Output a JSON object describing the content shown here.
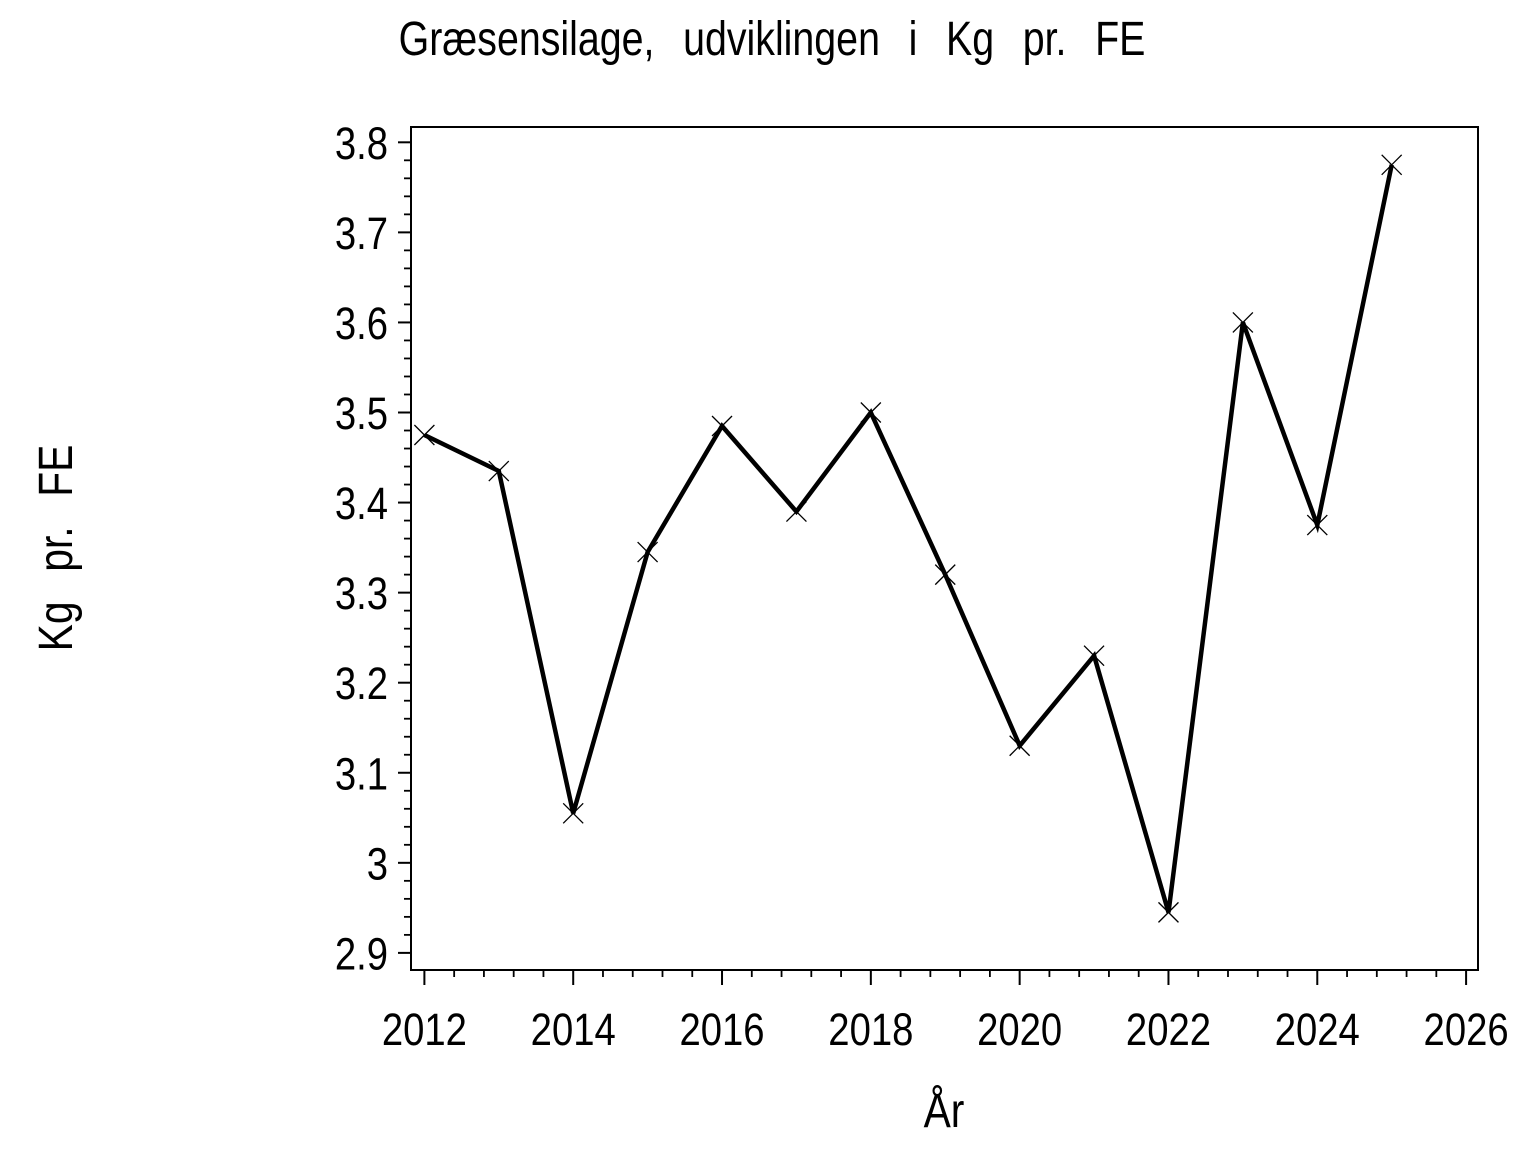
{
  "page": {
    "background": "#ffffff",
    "foreground": "#000000"
  },
  "chart_data": {
    "type": "line",
    "title": "Græsensilage, udviklingen i Kg pr. FE",
    "xlabel": "År",
    "ylabel": "Kg pr. FE",
    "x": [
      2012,
      2013,
      2014,
      2015,
      2016,
      2017,
      2018,
      2019,
      2020,
      2021,
      2022,
      2023,
      2024,
      2025
    ],
    "values": [
      3.475,
      3.435,
      3.055,
      3.345,
      3.485,
      3.39,
      3.5,
      3.32,
      3.13,
      3.23,
      2.945,
      3.6,
      3.375,
      3.775
    ],
    "marker": "x",
    "line_color": "#000000",
    "grid": false,
    "legend": false,
    "x_axis": {
      "min": 2011.82,
      "max": 2026.16,
      "major_ticks": [
        2012,
        2014,
        2016,
        2018,
        2020,
        2022,
        2024,
        2026
      ],
      "tick_labels": [
        "2012",
        "2014",
        "2016",
        "2018",
        "2020",
        "2022",
        "2024",
        "2026"
      ],
      "minor_tick_step": 0.4
    },
    "y_axis": {
      "min": 2.881,
      "max": 3.817,
      "major_ticks": [
        2.9,
        3.0,
        3.1,
        3.2,
        3.3,
        3.4,
        3.5,
        3.6,
        3.7,
        3.8
      ],
      "tick_labels": [
        "2.9",
        "3",
        "3.1",
        "3.2",
        "3.3",
        "3.4",
        "3.5",
        "3.6",
        "3.7",
        "3.8"
      ],
      "minor_tick_step": 0.02
    }
  }
}
